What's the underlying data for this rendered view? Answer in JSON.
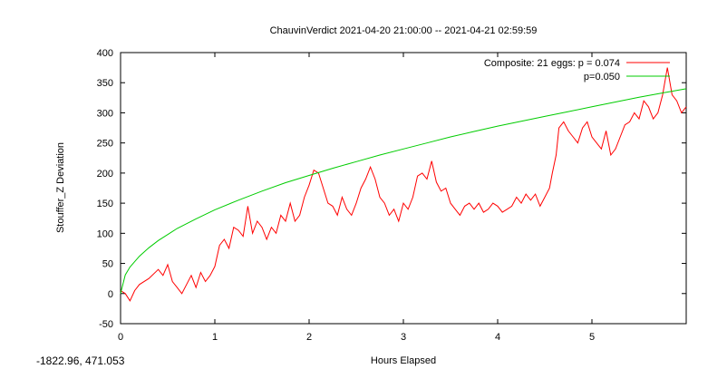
{
  "status": {
    "coordinates": "-1822.96,  471.053"
  },
  "chart_data": {
    "type": "line",
    "title": "ChauvinVerdict 2021-04-20 21:00:00 -- 2021-04-21 02:59:59",
    "xlabel": "Hours Elapsed",
    "ylabel": "Stouffer_Z Deviation",
    "xlim": [
      0,
      6
    ],
    "ylim": [
      -50,
      400
    ],
    "x_ticks": [
      0,
      1,
      2,
      3,
      4,
      5
    ],
    "y_ticks": [
      -50,
      0,
      50,
      100,
      150,
      200,
      250,
      300,
      350,
      400
    ],
    "grid": false,
    "legend_position": "top-right",
    "series": [
      {
        "name": "Composite: 21 eggs: p = 0.074",
        "color": "#ff0000",
        "x": [
          0,
          0.05,
          0.1,
          0.15,
          0.2,
          0.3,
          0.4,
          0.45,
          0.5,
          0.55,
          0.6,
          0.65,
          0.7,
          0.75,
          0.8,
          0.85,
          0.9,
          0.95,
          1.0,
          1.05,
          1.1,
          1.15,
          1.2,
          1.25,
          1.3,
          1.35,
          1.4,
          1.45,
          1.5,
          1.55,
          1.6,
          1.65,
          1.7,
          1.75,
          1.8,
          1.85,
          1.9,
          1.95,
          2.0,
          2.05,
          2.1,
          2.15,
          2.2,
          2.25,
          2.3,
          2.35,
          2.4,
          2.45,
          2.5,
          2.55,
          2.6,
          2.65,
          2.7,
          2.75,
          2.8,
          2.85,
          2.9,
          2.95,
          3.0,
          3.05,
          3.1,
          3.15,
          3.2,
          3.25,
          3.3,
          3.35,
          3.4,
          3.45,
          3.5,
          3.55,
          3.6,
          3.65,
          3.7,
          3.75,
          3.8,
          3.85,
          3.9,
          3.95,
          4.0,
          4.05,
          4.1,
          4.15,
          4.2,
          4.25,
          4.3,
          4.35,
          4.4,
          4.45,
          4.5,
          4.55,
          4.58,
          4.62,
          4.65,
          4.7,
          4.75,
          4.8,
          4.85,
          4.9,
          4.95,
          5.0,
          5.05,
          5.1,
          5.15,
          5.2,
          5.25,
          5.3,
          5.35,
          5.4,
          5.45,
          5.5,
          5.55,
          5.6,
          5.65,
          5.7,
          5.75,
          5.8,
          5.85,
          5.9,
          5.95,
          6.0
        ],
        "values": [
          5,
          0,
          -12,
          5,
          15,
          25,
          40,
          30,
          48,
          20,
          10,
          0,
          15,
          30,
          10,
          35,
          20,
          30,
          45,
          80,
          90,
          75,
          110,
          105,
          95,
          145,
          100,
          120,
          110,
          90,
          110,
          100,
          130,
          120,
          150,
          120,
          130,
          160,
          180,
          205,
          200,
          175,
          150,
          145,
          130,
          160,
          140,
          130,
          150,
          175,
          190,
          210,
          190,
          160,
          150,
          130,
          140,
          120,
          150,
          140,
          160,
          195,
          200,
          190,
          220,
          185,
          170,
          175,
          150,
          140,
          130,
          145,
          150,
          140,
          150,
          135,
          140,
          150,
          145,
          135,
          140,
          145,
          160,
          150,
          165,
          155,
          165,
          145,
          160,
          175,
          200,
          230,
          275,
          285,
          270,
          260,
          250,
          275,
          285,
          260,
          250,
          240,
          270,
          230,
          240,
          260,
          280,
          285,
          300,
          290,
          320,
          310,
          290,
          300,
          330,
          375,
          330,
          320,
          300,
          310
        ]
      },
      {
        "name": "p=0.050",
        "color": "#00cc00",
        "x": [
          0,
          0.05,
          0.1,
          0.2,
          0.3,
          0.4,
          0.5,
          0.6,
          0.8,
          1.0,
          1.25,
          1.5,
          1.75,
          2.0,
          2.25,
          2.5,
          2.75,
          3.0,
          3.25,
          3.5,
          3.75,
          4.0,
          4.25,
          4.5,
          4.75,
          5.0,
          5.25,
          5.5,
          5.75,
          6.0
        ],
        "values": [
          0,
          31,
          44,
          62,
          76,
          88,
          98,
          108,
          124,
          139,
          155,
          170,
          184,
          196,
          208,
          219,
          230,
          240,
          250,
          260,
          269,
          278,
          286,
          294,
          302,
          310,
          318,
          326,
          333,
          340
        ]
      }
    ]
  }
}
